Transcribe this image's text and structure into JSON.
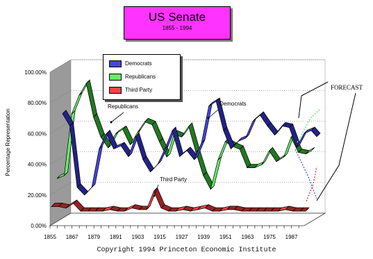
{
  "title": "US Senate",
  "subtitle": "1855 - 1994",
  "footer": "Copyright 1994 Princeton Economic Institute",
  "chart_data": {
    "type": "line",
    "title": "US Senate",
    "subtitle": "1855 - 1994",
    "xlabel": "",
    "ylabel": "Percentage Representation",
    "ylim": [
      0,
      100
    ],
    "yticks": [
      "0.00%",
      "20.00%",
      "40.00%",
      "60.00%",
      "80.00%",
      "100.00%"
    ],
    "xticks": [
      "1855",
      "1867",
      "1879",
      "1891",
      "1903",
      "1915",
      "1927",
      "1939",
      "1951",
      "1963",
      "1975",
      "1987"
    ],
    "x": [
      1855,
      1859,
      1863,
      1867,
      1871,
      1875,
      1879,
      1883,
      1887,
      1891,
      1895,
      1899,
      1903,
      1907,
      1911,
      1915,
      1919,
      1923,
      1927,
      1931,
      1935,
      1939,
      1943,
      1947,
      1951,
      1955,
      1959,
      1963,
      1967,
      1971,
      1975,
      1979,
      1983,
      1987,
      1991,
      1994
    ],
    "series": [
      {
        "name": "Democrats",
        "color": "#4444dd",
        "values": [
          68,
          60,
          20,
          15,
          20,
          45,
          55,
          45,
          47,
          40,
          53,
          38,
          30,
          35,
          45,
          57,
          40,
          44,
          38,
          49,
          73,
          76,
          57,
          45,
          50,
          52,
          63,
          67,
          60,
          54,
          60,
          59,
          46,
          55,
          57,
          53
        ]
      },
      {
        "name": "Republicans",
        "color": "#66ee66",
        "values": [
          28,
          30,
          70,
          82,
          90,
          68,
          55,
          48,
          57,
          60,
          50,
          58,
          65,
          63,
          52,
          42,
          57,
          55,
          62,
          45,
          30,
          21,
          40,
          52,
          49,
          47,
          35,
          35,
          37,
          46,
          39,
          42,
          55,
          45,
          44,
          46
        ]
      },
      {
        "name": "Third Party",
        "color": "#ee4444",
        "values": [
          12,
          12,
          11,
          14,
          9,
          9,
          9,
          9,
          10,
          9,
          9,
          11,
          10,
          10,
          22,
          11,
          9,
          9,
          10,
          9,
          10,
          11,
          9,
          9,
          10,
          10,
          9,
          9,
          9,
          9,
          9,
          9,
          10,
          9,
          9,
          9
        ]
      }
    ],
    "forecast_label": "FORECAST",
    "annotations": [
      "Republicans",
      "Democrats",
      "Third Party"
    ],
    "legend": "top-left"
  }
}
